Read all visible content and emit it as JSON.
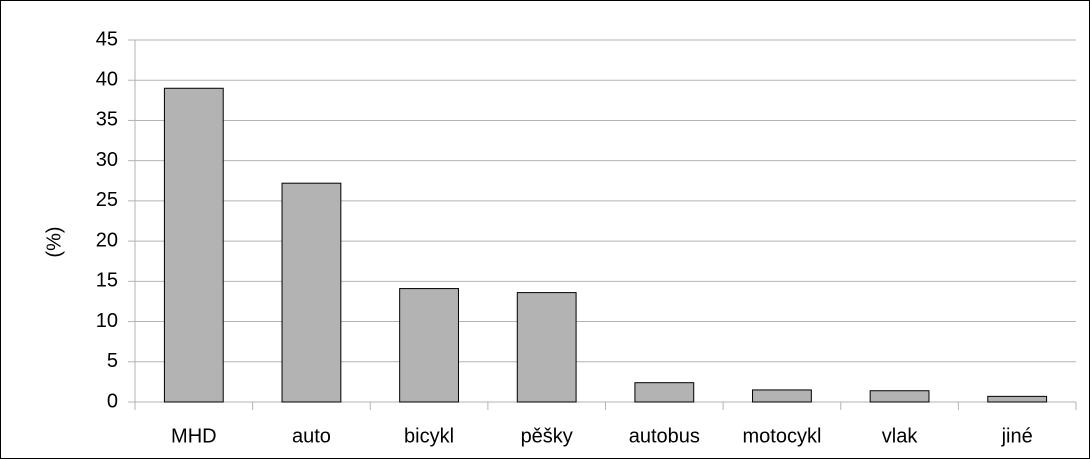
{
  "chart_data": {
    "type": "bar",
    "y_label": "(%)",
    "categories": [
      "MHD",
      "auto",
      "bicykl",
      "pěšky",
      "autobus",
      "motocykl",
      "vlak",
      "jiné"
    ],
    "values": [
      39,
      27.2,
      14.1,
      13.6,
      2.4,
      1.5,
      1.4,
      0.7
    ],
    "color": "#b3b3b3",
    "ylim": [
      0,
      45
    ],
    "yticks": [
      0,
      5,
      10,
      15,
      20,
      25,
      30,
      35,
      40,
      45
    ],
    "grid": true
  }
}
